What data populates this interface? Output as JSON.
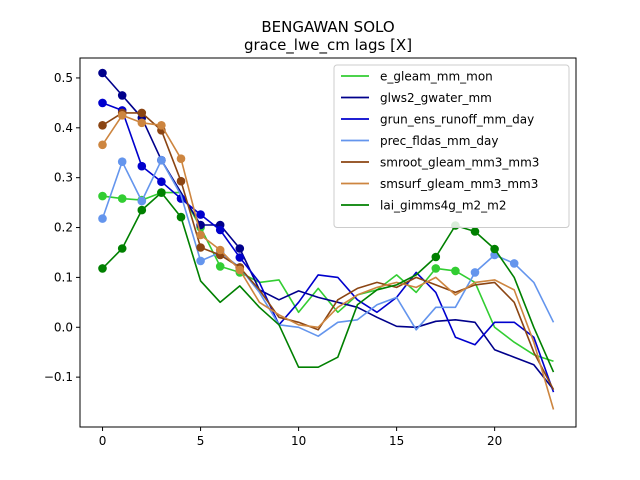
{
  "chart_data": {
    "type": "line",
    "title": "BENGAWAN SOLO",
    "subtitle": "grace_lwe_cm lags [X]",
    "xlabel": "",
    "ylabel": "",
    "xlim": [
      -1.15,
      24.15
    ],
    "ylim": [
      -0.2,
      0.54
    ],
    "xticks": [
      0,
      5,
      10,
      15,
      20
    ],
    "yticks": [
      -0.1,
      0.0,
      0.1,
      0.2,
      0.3,
      0.4,
      0.5
    ],
    "xtick_labels": [
      "0",
      "5",
      "10",
      "15",
      "20"
    ],
    "ytick_labels": [
      "−0.1",
      "0.0",
      "0.1",
      "0.2",
      "0.3",
      "0.4",
      "0.5"
    ],
    "grid": false,
    "legend_position": "top-right",
    "x": [
      0,
      1,
      2,
      3,
      4,
      5,
      6,
      7,
      8,
      9,
      10,
      11,
      12,
      13,
      14,
      15,
      16,
      17,
      18,
      19,
      20,
      21,
      22,
      23
    ],
    "series": [
      {
        "name": "e_gleam_mm_mon",
        "color": "#32cd32",
        "values": [
          0.263,
          0.258,
          0.255,
          0.27,
          0.27,
          0.2,
          0.122,
          0.11,
          0.09,
          0.095,
          0.03,
          0.078,
          0.03,
          0.065,
          0.075,
          0.105,
          0.07,
          0.118,
          0.113,
          0.09,
          0.0,
          -0.03,
          -0.055,
          -0.068
        ],
        "markers": [
          0,
          1,
          2,
          3,
          5,
          6,
          7,
          17,
          18
        ]
      },
      {
        "name": "glws2_gwater_mm",
        "color": "#00008b",
        "values": [
          0.51,
          0.465,
          0.42,
          0.335,
          0.27,
          0.205,
          0.205,
          0.158,
          0.075,
          0.055,
          0.073,
          0.06,
          0.05,
          0.04,
          0.02,
          0.002,
          0.0,
          0.012,
          0.015,
          0.01,
          -0.045,
          -0.06,
          -0.075,
          -0.125
        ],
        "markers": [
          0,
          1,
          2,
          3,
          5,
          6,
          7
        ]
      },
      {
        "name": "grun_ens_runoff_mm_day",
        "color": "#0000cd",
        "values": [
          0.45,
          0.435,
          0.323,
          0.292,
          0.258,
          0.226,
          0.195,
          0.14,
          0.09,
          0.005,
          0.05,
          0.105,
          0.1,
          0.055,
          0.03,
          0.06,
          0.11,
          0.07,
          -0.02,
          -0.035,
          0.01,
          0.01,
          -0.02,
          -0.13
        ],
        "markers": [
          0,
          1,
          2,
          3,
          4,
          5,
          6,
          7
        ]
      },
      {
        "name": "prec_fldas_mm_day",
        "color": "#6495ed",
        "values": [
          0.218,
          0.332,
          0.253,
          0.335,
          0.265,
          0.133,
          0.15,
          0.12,
          0.07,
          0.005,
          0.0,
          -0.018,
          0.01,
          0.015,
          0.045,
          0.06,
          -0.005,
          0.04,
          0.04,
          0.11,
          0.145,
          0.128,
          0.09,
          0.01
        ],
        "markers": [
          0,
          1,
          2,
          3,
          5,
          6,
          7,
          19,
          20,
          21
        ]
      },
      {
        "name": "smroot_gleam_mm3_mm3",
        "color": "#8b4513",
        "values": [
          0.405,
          0.43,
          0.43,
          0.395,
          0.293,
          0.16,
          0.145,
          0.12,
          0.075,
          0.02,
          0.01,
          -0.005,
          0.055,
          0.078,
          0.09,
          0.08,
          0.1,
          0.085,
          0.07,
          0.085,
          0.09,
          0.05,
          -0.05,
          -0.125
        ],
        "markers": [
          0,
          1,
          2,
          3,
          4,
          5,
          6,
          7
        ]
      },
      {
        "name": "smsurf_gleam_mm3_mm3",
        "color": "#cd853f",
        "values": [
          0.366,
          0.425,
          0.41,
          0.405,
          0.338,
          0.185,
          0.155,
          0.115,
          0.05,
          0.025,
          0.005,
          0.0,
          0.04,
          0.065,
          0.08,
          0.09,
          0.08,
          0.1,
          0.065,
          0.09,
          0.095,
          0.075,
          -0.03,
          -0.165
        ],
        "markers": [
          0,
          1,
          2,
          3,
          4,
          5,
          6,
          7
        ]
      },
      {
        "name": "lai_gimms4g_m2_m2",
        "color": "#008000",
        "values": [
          0.118,
          0.158,
          0.235,
          0.27,
          0.221,
          0.093,
          0.05,
          0.083,
          0.04,
          0.005,
          -0.08,
          -0.08,
          -0.06,
          0.045,
          0.075,
          0.085,
          0.105,
          0.141,
          0.204,
          0.192,
          0.157,
          0.1,
          0.0,
          -0.09
        ],
        "markers": [
          0,
          1,
          2,
          3,
          4,
          17,
          18,
          19,
          20
        ]
      }
    ]
  }
}
